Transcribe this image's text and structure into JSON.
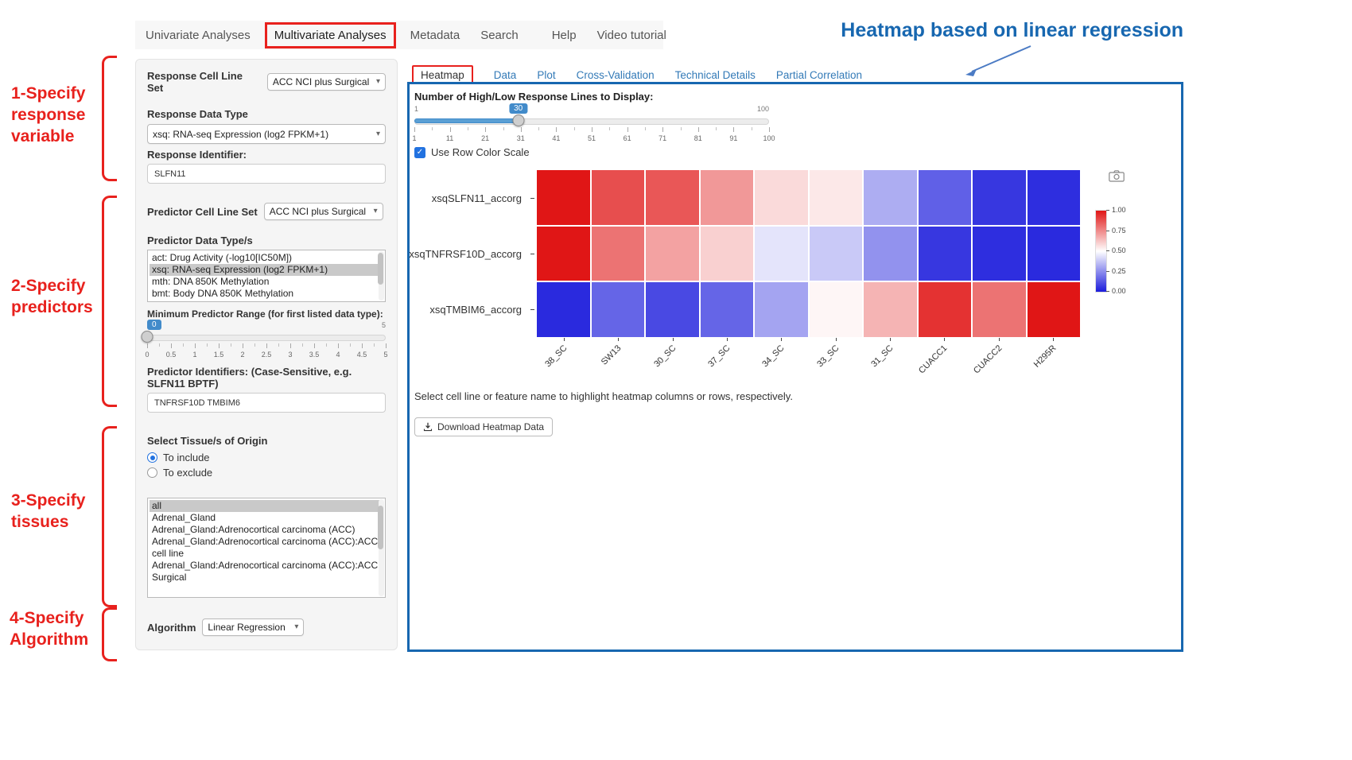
{
  "icons": {
    "chevron_down": "▾",
    "check": "✓"
  },
  "annotations": {
    "heading": "Heatmap based on linear regression",
    "steps": [
      "1-Specify response variable",
      "2-Specify predictors",
      "3-Specify tissues",
      "4-Specify Algorithm"
    ]
  },
  "nav": {
    "items": [
      {
        "label": "Univariate Analyses",
        "highlighted": false
      },
      {
        "label": "Multivariate Analyses",
        "highlighted": true
      },
      {
        "label": "Metadata",
        "highlighted": false
      },
      {
        "label": "Search",
        "highlighted": false
      },
      {
        "label": "Help",
        "highlighted": false
      },
      {
        "label": "Video tutorial",
        "highlighted": false
      }
    ]
  },
  "sidebar": {
    "response_cell_line_set": {
      "label": "Response Cell Line Set",
      "value": "ACC NCI plus Surgical"
    },
    "response_data_type": {
      "label": "Response Data Type",
      "value": "xsq: RNA-seq Expression (log2 FPKM+1)"
    },
    "response_identifier": {
      "label": "Response Identifier:",
      "value": "SLFN11"
    },
    "predictor_cell_line_set": {
      "label": "Predictor Cell Line Set",
      "value": "ACC NCI plus Surgical"
    },
    "predictor_data_types": {
      "label": "Predictor Data Type/s",
      "options": [
        "act: Drug Activity (-log10[IC50M])",
        "xsq: RNA-seq Expression (log2 FPKM+1)",
        "mth: DNA 850K Methylation",
        "bmt: Body DNA 850K Methylation"
      ],
      "selected": "xsq: RNA-seq Expression (log2 FPKM+1)"
    },
    "min_predictor_range": {
      "label": "Minimum Predictor Range (for first listed data type):",
      "value": 0,
      "min": 0,
      "max": 5,
      "ticks": [
        "0",
        "0.5",
        "1",
        "1.5",
        "2",
        "2.5",
        "3",
        "3.5",
        "4",
        "4.5",
        "5"
      ]
    },
    "predictor_identifiers": {
      "label": "Predictor Identifiers: (Case-Sensitive, e.g. SLFN11 BPTF)",
      "value": "TNFRSF10D TMBIM6"
    },
    "tissue": {
      "label": "Select Tissue/s of Origin",
      "include_label": "To include",
      "exclude_label": "To exclude",
      "selected_mode": "To include",
      "options": [
        "all",
        "Adrenal_Gland",
        "Adrenal_Gland:Adrenocortical carcinoma (ACC)",
        "Adrenal_Gland:Adrenocortical carcinoma (ACC):ACC cell line",
        "Adrenal_Gland:Adrenocortical carcinoma (ACC):ACC Surgical"
      ],
      "selected": "all"
    },
    "algorithm": {
      "label": "Algorithm",
      "value": "Linear Regression"
    }
  },
  "main": {
    "tabs": [
      {
        "label": "Heatmap",
        "active": true
      },
      {
        "label": "Data",
        "active": false
      },
      {
        "label": "Plot",
        "active": false
      },
      {
        "label": "Cross-Validation",
        "active": false
      },
      {
        "label": "Technical Details",
        "active": false
      },
      {
        "label": "Partial Correlation",
        "active": false
      }
    ],
    "lines_slider": {
      "label": "Number of High/Low Response Lines to Display:",
      "value": 30,
      "min": 1,
      "max": 100,
      "ticks": [
        "1",
        "11",
        "21",
        "31",
        "41",
        "51",
        "61",
        "71",
        "81",
        "91",
        "100"
      ]
    },
    "row_color_scale": {
      "label": "Use Row Color Scale",
      "checked": true
    },
    "hint": "Select cell line or feature name to highlight heatmap columns or rows, respectively.",
    "download_button": "Download Heatmap Data"
  },
  "chart_data": {
    "type": "heatmap",
    "rows": [
      "xsqSLFN11_accorg",
      "xsqTNFRSF10D_accorg",
      "xsqTMBIM6_accorg"
    ],
    "columns": [
      "38_SC",
      "SW13",
      "30_SC",
      "37_SC",
      "34_SC",
      "33_SC",
      "31_SC",
      "CUACC1",
      "CUACC2",
      "H295R"
    ],
    "values": [
      [
        1.0,
        0.88,
        0.86,
        0.72,
        0.58,
        0.55,
        0.32,
        0.15,
        0.06,
        0.04
      ],
      [
        1.0,
        0.8,
        0.7,
        0.6,
        0.44,
        0.38,
        0.26,
        0.06,
        0.04,
        0.03
      ],
      [
        0.03,
        0.16,
        0.1,
        0.16,
        0.3,
        0.52,
        0.66,
        0.94,
        0.8,
        1.0
      ]
    ],
    "value_range": [
      0,
      1
    ],
    "row_color_scale": true,
    "colorbar": {
      "ticks": [
        "1.00",
        "0.75",
        "0.50",
        "0.25",
        "0.00"
      ],
      "high_color": "#e01616",
      "low_color": "#1c1cdc"
    }
  }
}
